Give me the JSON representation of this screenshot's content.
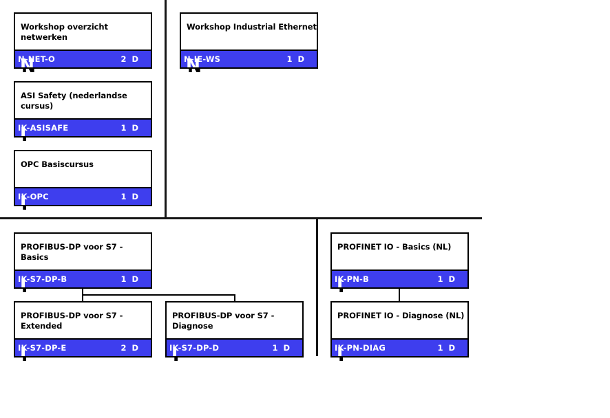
{
  "colors": {
    "bar_blue": "#3e3eee",
    "border": "#000000",
    "divider": "#161616",
    "title_text": "#000000",
    "bar_text": "#ffffff"
  },
  "courses": [
    {
      "title": "Workshop overzicht netwerken",
      "code": "N-NET-O",
      "days": "2",
      "unit": "D",
      "artifact": "N"
    },
    {
      "title": "Workshop Industrial Ethernet",
      "code": "N-IE-WS",
      "days": "1",
      "unit": "D",
      "artifact": "N"
    },
    {
      "title": "ASI Safety (nederlandse cursus)",
      "code": "IK-ASISAFE",
      "days": "1",
      "unit": "D",
      "artifact": "I"
    },
    {
      "title": "OPC Basiscursus",
      "code": "IK-OPC",
      "days": "1",
      "unit": "D",
      "artifact": "I"
    },
    {
      "title": "PROFIBUS-DP voor S7 - Basics",
      "code": "IK-S7-DP-B",
      "days": "1",
      "unit": "D",
      "artifact": "I"
    },
    {
      "title": "PROFIBUS-DP voor S7 - Extended",
      "code": "IK-S7-DP-E",
      "days": "2",
      "unit": "D",
      "artifact": "I"
    },
    {
      "title": "PROFIBUS-DP voor S7 - Diagnose",
      "code": "IK-S7-DP-D",
      "days": "1",
      "unit": "D",
      "artifact": "I"
    },
    {
      "title": "PROFINET IO - Basics (NL)",
      "code": "IK-PN-B",
      "days": "1",
      "unit": "D",
      "artifact": "I"
    },
    {
      "title": "PROFINET IO - Diagnose (NL)",
      "code": "IK-PN-DIAG",
      "days": "1",
      "unit": "D",
      "artifact": "I"
    }
  ]
}
